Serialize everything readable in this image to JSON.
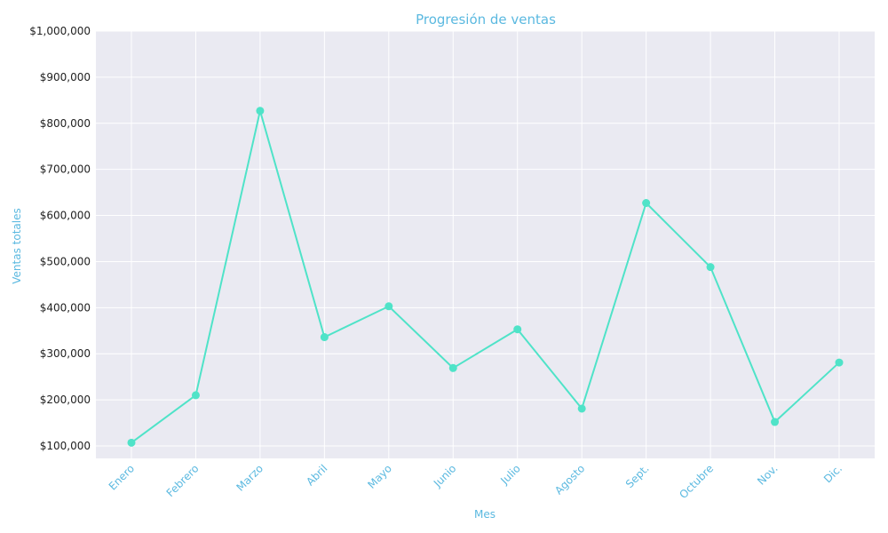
{
  "chart_data": {
    "type": "line",
    "title": "Progresión de ventas",
    "xlabel": "Mes",
    "ylabel": "Ventas totales",
    "categories": [
      "Enero",
      "Febrero",
      "Marzo",
      "Abril",
      "Mayo",
      "Junio",
      "Julio",
      "Agosto",
      "Sept.",
      "Octubre",
      "Nov.",
      "Dic."
    ],
    "series": [
      {
        "values": [
          107000,
          210000,
          827000,
          336000,
          403000,
          269000,
          353000,
          181000,
          627000,
          488000,
          152000,
          281000
        ]
      }
    ],
    "ylim": [
      73000,
      1000000
    ],
    "yticks": [
      100000,
      200000,
      300000,
      400000,
      500000,
      600000,
      700000,
      800000,
      900000,
      1000000
    ],
    "ytick_labels": [
      "$100,000",
      "$200,000",
      "$300,000",
      "$400,000",
      "$500,000",
      "$600,000",
      "$700,000",
      "$800,000",
      "$900,000",
      "$1,000,000"
    ],
    "grid": true,
    "colors": {
      "line": "#4fe3c8",
      "marker": "#4fe3c8",
      "plot_background": "#eaeaf2",
      "grid": "#ffffff",
      "text_accent": "#5bb9e0"
    }
  }
}
